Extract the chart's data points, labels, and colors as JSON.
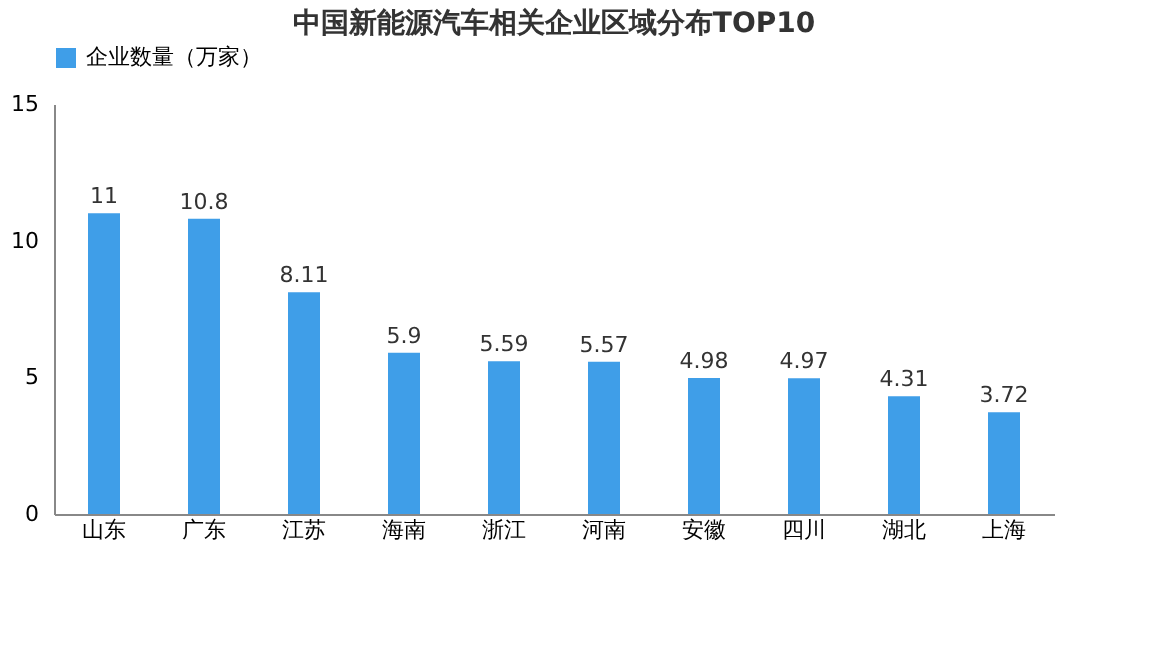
{
  "chart_data": {
    "type": "bar",
    "title": "中国新能源汽车相关企业区域分布TOP10",
    "categories": [
      "山东",
      "广东",
      "江苏",
      "海南",
      "浙江",
      "河南",
      "安徽",
      "四川",
      "湖北",
      "上海"
    ],
    "series": [
      {
        "name": "企业数量（万家）",
        "color": "#3f9ee8",
        "values": [
          11,
          10.8,
          8.11,
          5.9,
          5.59,
          5.57,
          4.98,
          4.97,
          4.31,
          3.72
        ]
      }
    ],
    "ylim": [
      0,
      15
    ],
    "yticks": [
      0,
      5,
      10,
      15
    ],
    "grid": false,
    "legend": "top",
    "data_labels": true
  }
}
